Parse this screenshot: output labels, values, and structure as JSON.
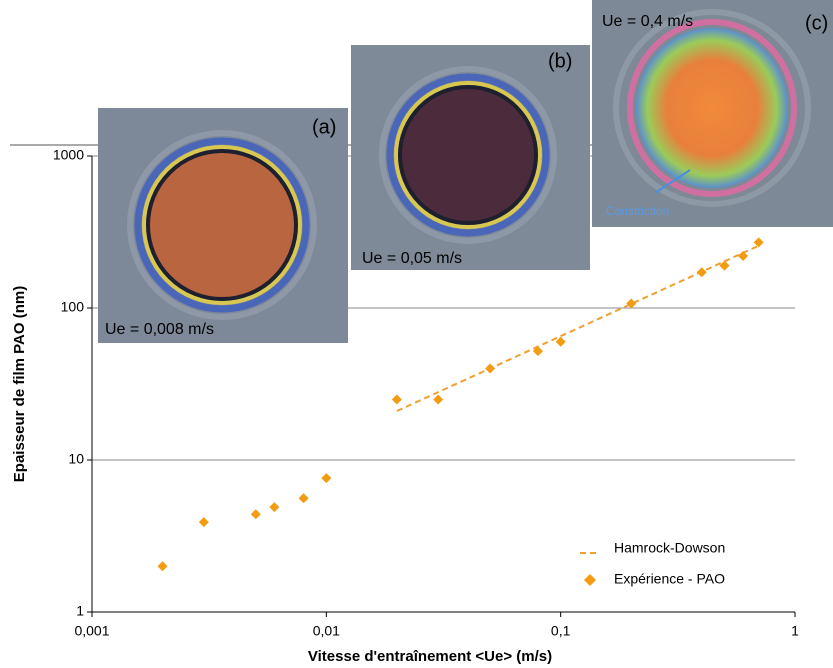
{
  "chart_data": {
    "type": "scatter",
    "xlabel": "Vitesse d'entraînement <Ue> (m/s)",
    "ylabel": "Epaisseur de film PAO (nm)",
    "xlog": true,
    "ylog": true,
    "xlim": [
      0.001,
      1
    ],
    "ylim": [
      1,
      1000
    ],
    "xticks": [
      {
        "value": 0.001,
        "label": "0,001"
      },
      {
        "value": 0.01,
        "label": "0,01"
      },
      {
        "value": 0.1,
        "label": "0,1"
      },
      1
    ],
    "yticks": [
      1,
      10,
      100,
      1000
    ],
    "grid": true,
    "legend_position": "lower right",
    "series": [
      {
        "name": "Hamrock-Dowson",
        "type": "line",
        "dashed": true,
        "color": "#f0a030",
        "x": [
          0.02,
          0.7
        ],
        "values": [
          21,
          257
        ]
      },
      {
        "name": "Expérience - PAO",
        "type": "scatter",
        "marker": "diamond",
        "color": "#f39c12",
        "x": [
          0.002,
          0.003,
          0.005,
          0.006,
          0.008,
          0.01,
          0.02,
          0.03,
          0.05,
          0.08,
          0.1,
          0.2,
          0.4,
          0.5,
          0.6,
          0.7
        ],
        "values": [
          2.0,
          3.9,
          4.4,
          4.9,
          5.6,
          7.6,
          25,
          25,
          40,
          52,
          60,
          107,
          172,
          190,
          220,
          270
        ]
      }
    ],
    "insets": [
      {
        "label": "(a)",
        "caption": "Ue = 0,008 m/s"
      },
      {
        "label": "(b)",
        "caption": "Ue = 0,05 m/s"
      },
      {
        "label": "(c)",
        "caption": "Ue = 0,4 m/s",
        "annotation": "Constriction"
      }
    ]
  }
}
